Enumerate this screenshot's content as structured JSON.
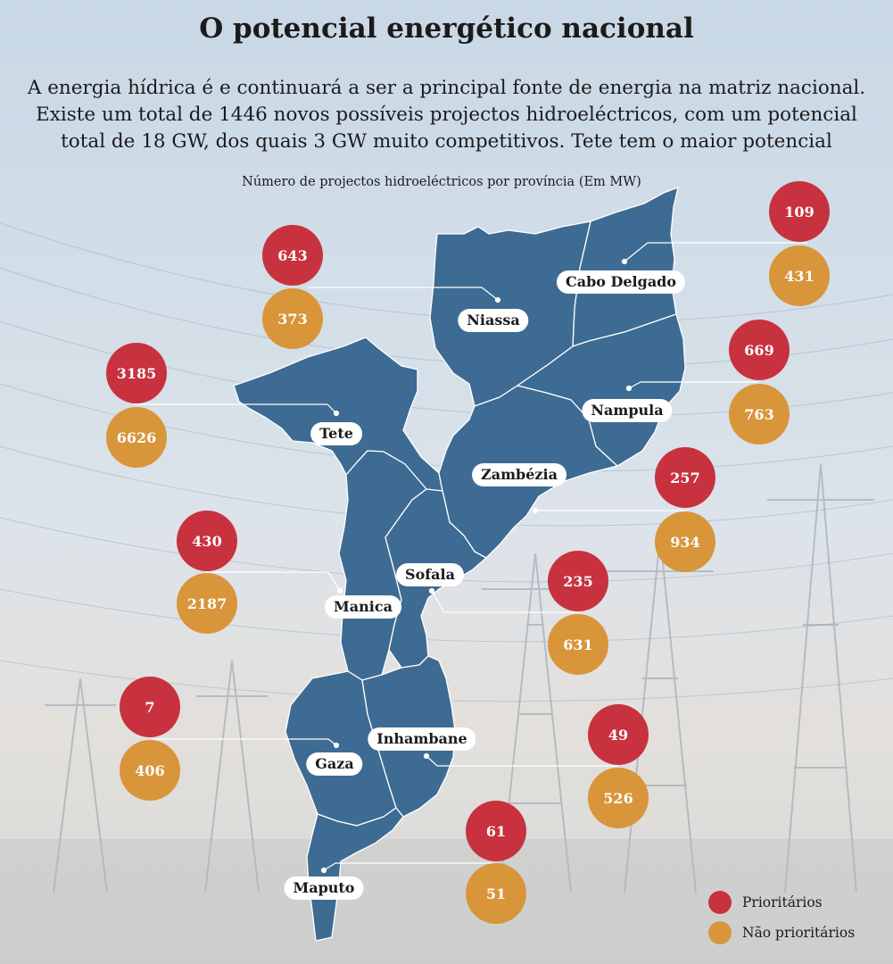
{
  "title": "O potencial energético nacional",
  "intro": [
    "A energia hídrica é e continuará a ser a principal fonte de energia na matriz nacional.",
    "Existe um total de 1446 novos possíveis projectos hidroeléctricos, com um potencial",
    "total de 18 GW, dos quais 3 GW muito competitivos. Tete tem o maior potencial"
  ],
  "subtitle": "Número de projectos hidroeléctricos por província (Em MW)",
  "colors": {
    "map_fill": "#3e6b93",
    "prioritarios": "#c8323f",
    "nao_prioritarios": "#d8953a"
  },
  "provinces": [
    {
      "name": "Cabo Delgado",
      "prioritarios": "109",
      "nao_prioritarios": "431"
    },
    {
      "name": "Niassa",
      "prioritarios": "643",
      "nao_prioritarios": "373"
    },
    {
      "name": "Nampula",
      "prioritarios": "669",
      "nao_prioritarios": "763"
    },
    {
      "name": "Tete",
      "prioritarios": "3185",
      "nao_prioritarios": "6626"
    },
    {
      "name": "Zambézia",
      "prioritarios": "257",
      "nao_prioritarios": "934"
    },
    {
      "name": "Manica",
      "prioritarios": "430",
      "nao_prioritarios": "2187"
    },
    {
      "name": "Sofala",
      "prioritarios": "235",
      "nao_prioritarios": "631"
    },
    {
      "name": "Gaza",
      "prioritarios": "7",
      "nao_prioritarios": "406"
    },
    {
      "name": "Inhambane",
      "prioritarios": "49",
      "nao_prioritarios": "526"
    },
    {
      "name": "Maputo",
      "prioritarios": "61",
      "nao_prioritarios": "51"
    }
  ],
  "legend": {
    "prioritarios": "Prioritários",
    "nao_prioritarios": "Não prioritários"
  }
}
